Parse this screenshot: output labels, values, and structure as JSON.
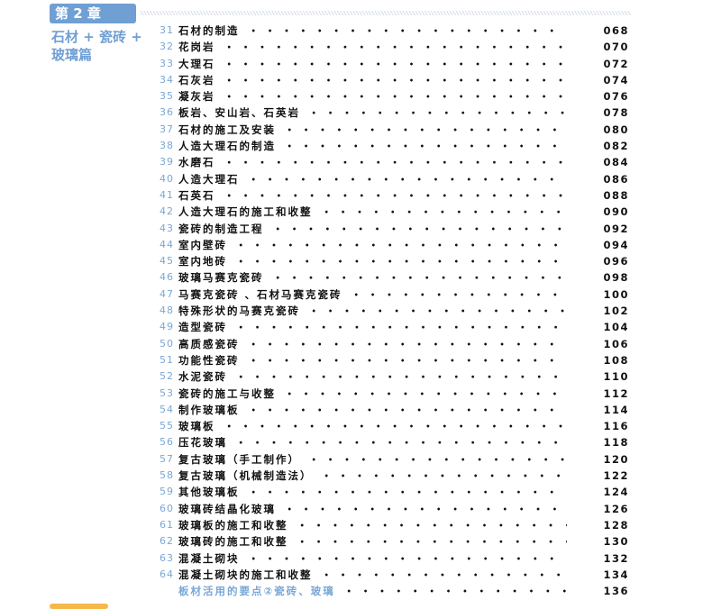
{
  "chapter": {
    "label": "第 2 章",
    "subtitle": "石材 + 瓷砖 + 玻璃篇"
  },
  "toc": [
    {
      "num": "31",
      "title": "石材的制造",
      "page": "068"
    },
    {
      "num": "32",
      "title": "花岗岩",
      "page": "070"
    },
    {
      "num": "33",
      "title": "大理石",
      "page": "072"
    },
    {
      "num": "34",
      "title": "石灰岩",
      "page": "074"
    },
    {
      "num": "35",
      "title": "凝灰岩",
      "page": "076"
    },
    {
      "num": "36",
      "title": "板岩、安山岩、石英岩",
      "page": "078"
    },
    {
      "num": "37",
      "title": "石材的施工及安装",
      "page": "080"
    },
    {
      "num": "38",
      "title": "人造大理石的制造",
      "page": "082"
    },
    {
      "num": "39",
      "title": "水磨石",
      "page": "084"
    },
    {
      "num": "40",
      "title": "人造大理石",
      "page": "086"
    },
    {
      "num": "41",
      "title": "石英石",
      "page": "088"
    },
    {
      "num": "42",
      "title": "人造大理石的施工和收整",
      "page": "090"
    },
    {
      "num": "43",
      "title": "瓷砖的制造工程",
      "page": "092"
    },
    {
      "num": "44",
      "title": "室内壁砖",
      "page": "094"
    },
    {
      "num": "45",
      "title": "室内地砖",
      "page": "096"
    },
    {
      "num": "46",
      "title": "玻璃马赛克瓷砖",
      "page": "098"
    },
    {
      "num": "47",
      "title": "马赛克瓷砖 、石材马赛克瓷砖",
      "page": "100"
    },
    {
      "num": "48",
      "title": "特殊形状的马赛克瓷砖",
      "page": "102"
    },
    {
      "num": "49",
      "title": "造型瓷砖",
      "page": "104"
    },
    {
      "num": "50",
      "title": "高质感瓷砖",
      "page": "106"
    },
    {
      "num": "51",
      "title": "功能性瓷砖",
      "page": "108"
    },
    {
      "num": "52",
      "title": "水泥瓷砖",
      "page": "110"
    },
    {
      "num": "53",
      "title": "瓷砖的施工与收整",
      "page": "112"
    },
    {
      "num": "54",
      "title": "制作玻璃板",
      "page": "114"
    },
    {
      "num": "55",
      "title": "玻璃板",
      "page": "116"
    },
    {
      "num": "56",
      "title": "压花玻璃",
      "page": "118"
    },
    {
      "num": "57",
      "title": "复古玻璃（手工制作）",
      "page": "120"
    },
    {
      "num": "58",
      "title": "复古玻璃（机械制造法）",
      "page": "122"
    },
    {
      "num": "59",
      "title": "其他玻璃板",
      "page": "124"
    },
    {
      "num": "60",
      "title": "玻璃砖结晶化玻璃",
      "page": "126"
    },
    {
      "num": "61",
      "title": "玻璃板的施工和收整",
      "page": "128"
    },
    {
      "num": "62",
      "title": "玻璃砖的施工和收整",
      "page": "130"
    },
    {
      "num": "63",
      "title": "混凝土砌块",
      "page": "132"
    },
    {
      "num": "64",
      "title": "混凝土砌块的施工和收整",
      "page": "134"
    },
    {
      "num": "",
      "title": "板材活用的要点②瓷砖、玻璃",
      "page": "136",
      "highlight": true
    }
  ],
  "colors": {
    "accent": "#6f9fd3",
    "footer_bar": "#f5b94a"
  }
}
